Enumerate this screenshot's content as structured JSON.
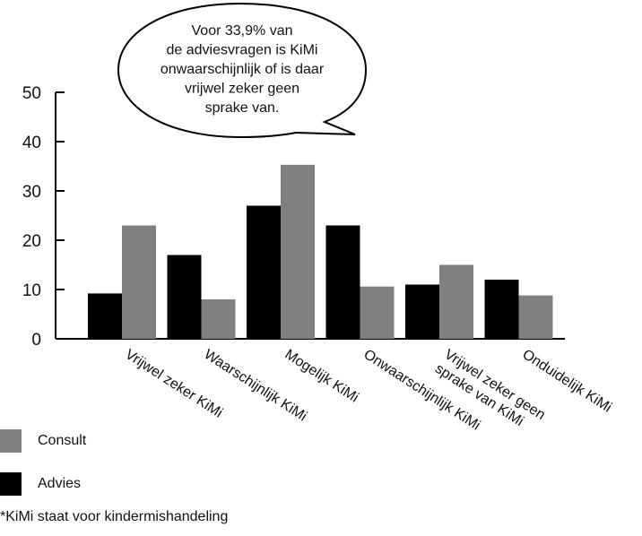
{
  "chart_data": {
    "type": "bar",
    "categories": [
      [
        "Vrijwel zeker KiMi"
      ],
      [
        "Waarschijnlijk KiMi"
      ],
      [
        "Mogelijk KiMi"
      ],
      [
        "Onwaarschijnlijk KiMi"
      ],
      [
        "Vrijwel zeker geen",
        "sprake van KiMi"
      ],
      [
        "Onduidelijk KiMi"
      ]
    ],
    "series": [
      {
        "name": "Advies",
        "color": "#000000",
        "values": [
          9.2,
          17,
          27,
          23,
          11,
          12
        ]
      },
      {
        "name": "Consult",
        "color": "#808080",
        "values": [
          23,
          8,
          35.3,
          10.6,
          15,
          8.8
        ]
      }
    ],
    "yticks": [
      0,
      10,
      20,
      30,
      40,
      50
    ],
    "ylim": [
      0,
      50
    ],
    "legend_position": "bottom-left",
    "annotation": [
      "Voor 33,9% van",
      "de adviesvragen is KiMi",
      "onwaarschijnlijk of is daar",
      "vrijwel zeker geen",
      "sprake van."
    ]
  },
  "legend": {
    "consult": "Consult",
    "advies": "Advies"
  },
  "footnote": "*KiMi staat voor kindermishandeling"
}
